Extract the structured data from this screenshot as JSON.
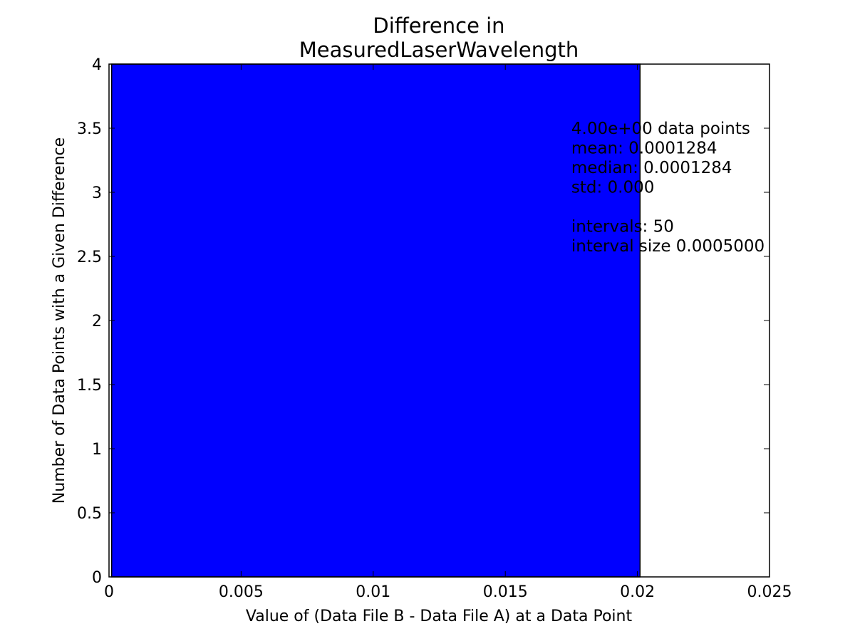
{
  "chart_data": {
    "type": "bar",
    "title_lines": [
      "Difference in",
      "MeasuredLaserWavelength"
    ],
    "xlabel": "Value of (Data File B - Data File A) at a Data Point",
    "ylabel": "Number of Data Points with a Given Difference",
    "xlim": [
      0,
      0.025
    ],
    "ylim": [
      0,
      4
    ],
    "x_ticks": [
      {
        "value": 0,
        "label": "0"
      },
      {
        "value": 0.005,
        "label": "0.005"
      },
      {
        "value": 0.01,
        "label": "0.01"
      },
      {
        "value": 0.015,
        "label": "0.015"
      },
      {
        "value": 0.02,
        "label": "0.02"
      },
      {
        "value": 0.025,
        "label": "0.025"
      }
    ],
    "y_ticks": [
      {
        "value": 0,
        "label": "0"
      },
      {
        "value": 0.5,
        "label": "0.5"
      },
      {
        "value": 1,
        "label": "1"
      },
      {
        "value": 1.5,
        "label": "1.5"
      },
      {
        "value": 2,
        "label": "2"
      },
      {
        "value": 2.5,
        "label": "2.5"
      },
      {
        "value": 3,
        "label": "3"
      },
      {
        "value": 3.5,
        "label": "3.5"
      },
      {
        "value": 4,
        "label": "4"
      }
    ],
    "bars": [
      {
        "x_start": 0.0001,
        "x_end": 0.0201,
        "value": 4
      }
    ],
    "bar_color": "#0000ff",
    "stats_text": [
      "4.00e+00 data points",
      "mean: 0.0001284",
      "median: 0.0001284",
      "std: 0.000",
      "",
      "intervals: 50",
      "interval size 0.0005000"
    ],
    "grid": false
  }
}
